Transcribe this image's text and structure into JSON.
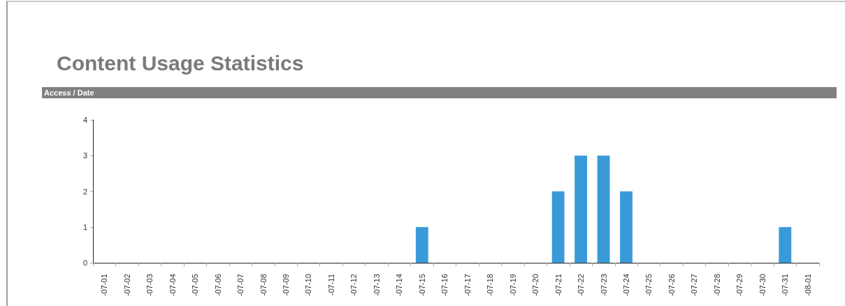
{
  "chart_data": {
    "type": "bar",
    "title": "Content Usage Statistics",
    "subtitle": "Access / Date",
    "categories": [
      "-07-01",
      "-07-02",
      "-07-03",
      "-07-04",
      "-07-05",
      "-07-06",
      "-07-07",
      "-07-08",
      "-07-09",
      "-07-10",
      "-07-11",
      "-07-12",
      "-07-13",
      "-07-14",
      "-07-15",
      "-07-16",
      "-07-17",
      "-07-18",
      "-07-19",
      "-07-20",
      "-07-21",
      "-07-22",
      "-07-23",
      "-07-24",
      "-07-25",
      "-07-26",
      "-07-27",
      "-07-28",
      "-07-29",
      "-07-30",
      "-07-31",
      "-08-01"
    ],
    "values": [
      0,
      0,
      0,
      0,
      0,
      0,
      0,
      0,
      0,
      0,
      0,
      0,
      0,
      0,
      1,
      0,
      0,
      0,
      0,
      0,
      2,
      3,
      3,
      2,
      0,
      0,
      0,
      0,
      0,
      0,
      1,
      0
    ],
    "color": "#3a9ad9",
    "ylim": [
      0,
      4
    ],
    "yticks": [
      0,
      1,
      2,
      3,
      4
    ],
    "grid": false
  }
}
